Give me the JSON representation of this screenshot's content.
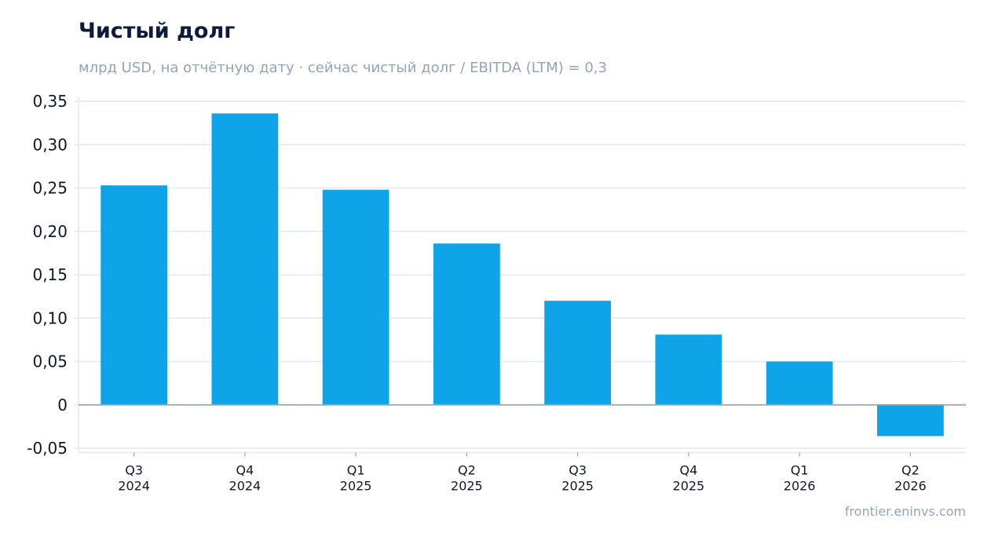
{
  "title": "Чистый долг",
  "subtitle": "млрд USD, на отчётную дату · сейчас чистый долг / EBITDA (LTM) = 0,3",
  "source": "frontier.eninvs.com",
  "colors": {
    "bar": "#0fa4e8",
    "grid": "#e2e8f0",
    "zero_line": "#94a3b8",
    "title": "#0f1b3d",
    "muted": "#94a3b8"
  },
  "chart_data": {
    "type": "bar",
    "title": "Чистый долг",
    "subtitle": "млрд USD, на отчётную дату · сейчас чистый долг / EBITDA (LTM) = 0,3",
    "categories": [
      [
        "Q3",
        "2024"
      ],
      [
        "Q4",
        "2024"
      ],
      [
        "Q1",
        "2025"
      ],
      [
        "Q2",
        "2025"
      ],
      [
        "Q3",
        "2025"
      ],
      [
        "Q4",
        "2025"
      ],
      [
        "Q1",
        "2026"
      ],
      [
        "Q2",
        "2026"
      ]
    ],
    "values": [
      0.253,
      0.336,
      0.248,
      0.186,
      0.12,
      0.081,
      0.05,
      -0.036
    ],
    "ylim": [
      -0.055,
      0.355
    ],
    "yticks": [
      -0.05,
      0,
      0.05,
      0.1,
      0.15,
      0.2,
      0.25,
      0.3,
      0.35
    ],
    "ytick_labels": [
      "-0,05",
      "0",
      "0,05",
      "0,10",
      "0,15",
      "0,20",
      "0,25",
      "0,30",
      "0,35"
    ],
    "grid": true,
    "legend": "none"
  }
}
